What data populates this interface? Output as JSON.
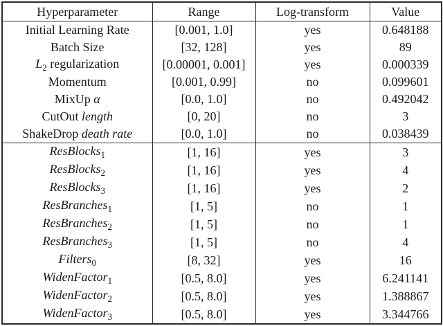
{
  "colors": {
    "text": "#1a1a1a",
    "border": "#2b2b2b",
    "background": "#ffffff"
  },
  "table": {
    "headers": {
      "hyperparameter": "Hyperparameter",
      "range": "Range",
      "log_transform": "Log-transform",
      "value": "Value"
    },
    "groups": [
      {
        "rows": [
          {
            "name": [
              {
                "text": "Initial Learning Rate",
                "style": "rm"
              }
            ],
            "range": "[0.001, 1.0]",
            "log_transform": "yes",
            "value": "0.648188"
          },
          {
            "name": [
              {
                "text": "Batch Size",
                "style": "rm"
              }
            ],
            "range": "[32, 128]",
            "log_transform": "yes",
            "value": "89"
          },
          {
            "name": [
              {
                "text": "L",
                "style": "it"
              },
              {
                "text": "2",
                "style": "sub"
              },
              {
                "text": " regularization",
                "style": "rm"
              }
            ],
            "range": "[0.00001, 0.001]",
            "log_transform": "yes",
            "value": "0.000339"
          },
          {
            "name": [
              {
                "text": "Momentum",
                "style": "rm"
              }
            ],
            "range": "[0.001, 0.99]",
            "log_transform": "no",
            "value": "0.099601"
          },
          {
            "name": [
              {
                "text": "MixUp ",
                "style": "rm"
              },
              {
                "text": "α",
                "style": "it"
              }
            ],
            "range": "[0.0, 1.0]",
            "log_transform": "no",
            "value": "0.492042"
          },
          {
            "name": [
              {
                "text": "CutOut ",
                "style": "rm"
              },
              {
                "text": "length",
                "style": "it"
              }
            ],
            "range": "[0, 20]",
            "log_transform": "no",
            "value": "3"
          },
          {
            "name": [
              {
                "text": "ShakeDrop ",
                "style": "rm"
              },
              {
                "text": "death rate",
                "style": "it"
              }
            ],
            "range": "[0.0, 1.0]",
            "log_transform": "no",
            "value": "0.038439"
          }
        ]
      },
      {
        "rows": [
          {
            "name": [
              {
                "text": "ResBlocks",
                "style": "it"
              },
              {
                "text": "1",
                "style": "sub"
              }
            ],
            "range": "[1, 16]",
            "log_transform": "yes",
            "value": "3"
          },
          {
            "name": [
              {
                "text": "ResBlocks",
                "style": "it"
              },
              {
                "text": "2",
                "style": "sub"
              }
            ],
            "range": "[1, 16]",
            "log_transform": "yes",
            "value": "4"
          },
          {
            "name": [
              {
                "text": "ResBlocks",
                "style": "it"
              },
              {
                "text": "3",
                "style": "sub"
              }
            ],
            "range": "[1, 16]",
            "log_transform": "yes",
            "value": "2"
          },
          {
            "name": [
              {
                "text": "ResBranches",
                "style": "it"
              },
              {
                "text": "1",
                "style": "sub"
              }
            ],
            "range": "[1, 5]",
            "log_transform": "no",
            "value": "1"
          },
          {
            "name": [
              {
                "text": "ResBranches",
                "style": "it"
              },
              {
                "text": "2",
                "style": "sub"
              }
            ],
            "range": "[1, 5]",
            "log_transform": "no",
            "value": "1"
          },
          {
            "name": [
              {
                "text": "ResBranches",
                "style": "it"
              },
              {
                "text": "3",
                "style": "sub"
              }
            ],
            "range": "[1, 5]",
            "log_transform": "no",
            "value": "4"
          },
          {
            "name": [
              {
                "text": "Filters",
                "style": "it"
              },
              {
                "text": "0",
                "style": "sub"
              }
            ],
            "range": "[8, 32]",
            "log_transform": "yes",
            "value": "16"
          },
          {
            "name": [
              {
                "text": "WidenFactor",
                "style": "it"
              },
              {
                "text": "1",
                "style": "sub"
              }
            ],
            "range": "[0.5, 8.0]",
            "log_transform": "yes",
            "value": "6.241141"
          },
          {
            "name": [
              {
                "text": "WidenFactor",
                "style": "it"
              },
              {
                "text": "2",
                "style": "sub"
              }
            ],
            "range": "[0.5, 8.0]",
            "log_transform": "yes",
            "value": "1.388867"
          },
          {
            "name": [
              {
                "text": "WidenFactor",
                "style": "it"
              },
              {
                "text": "3",
                "style": "sub"
              }
            ],
            "range": "[0.5, 8.0]",
            "log_transform": "yes",
            "value": "3.344766"
          }
        ]
      }
    ]
  }
}
